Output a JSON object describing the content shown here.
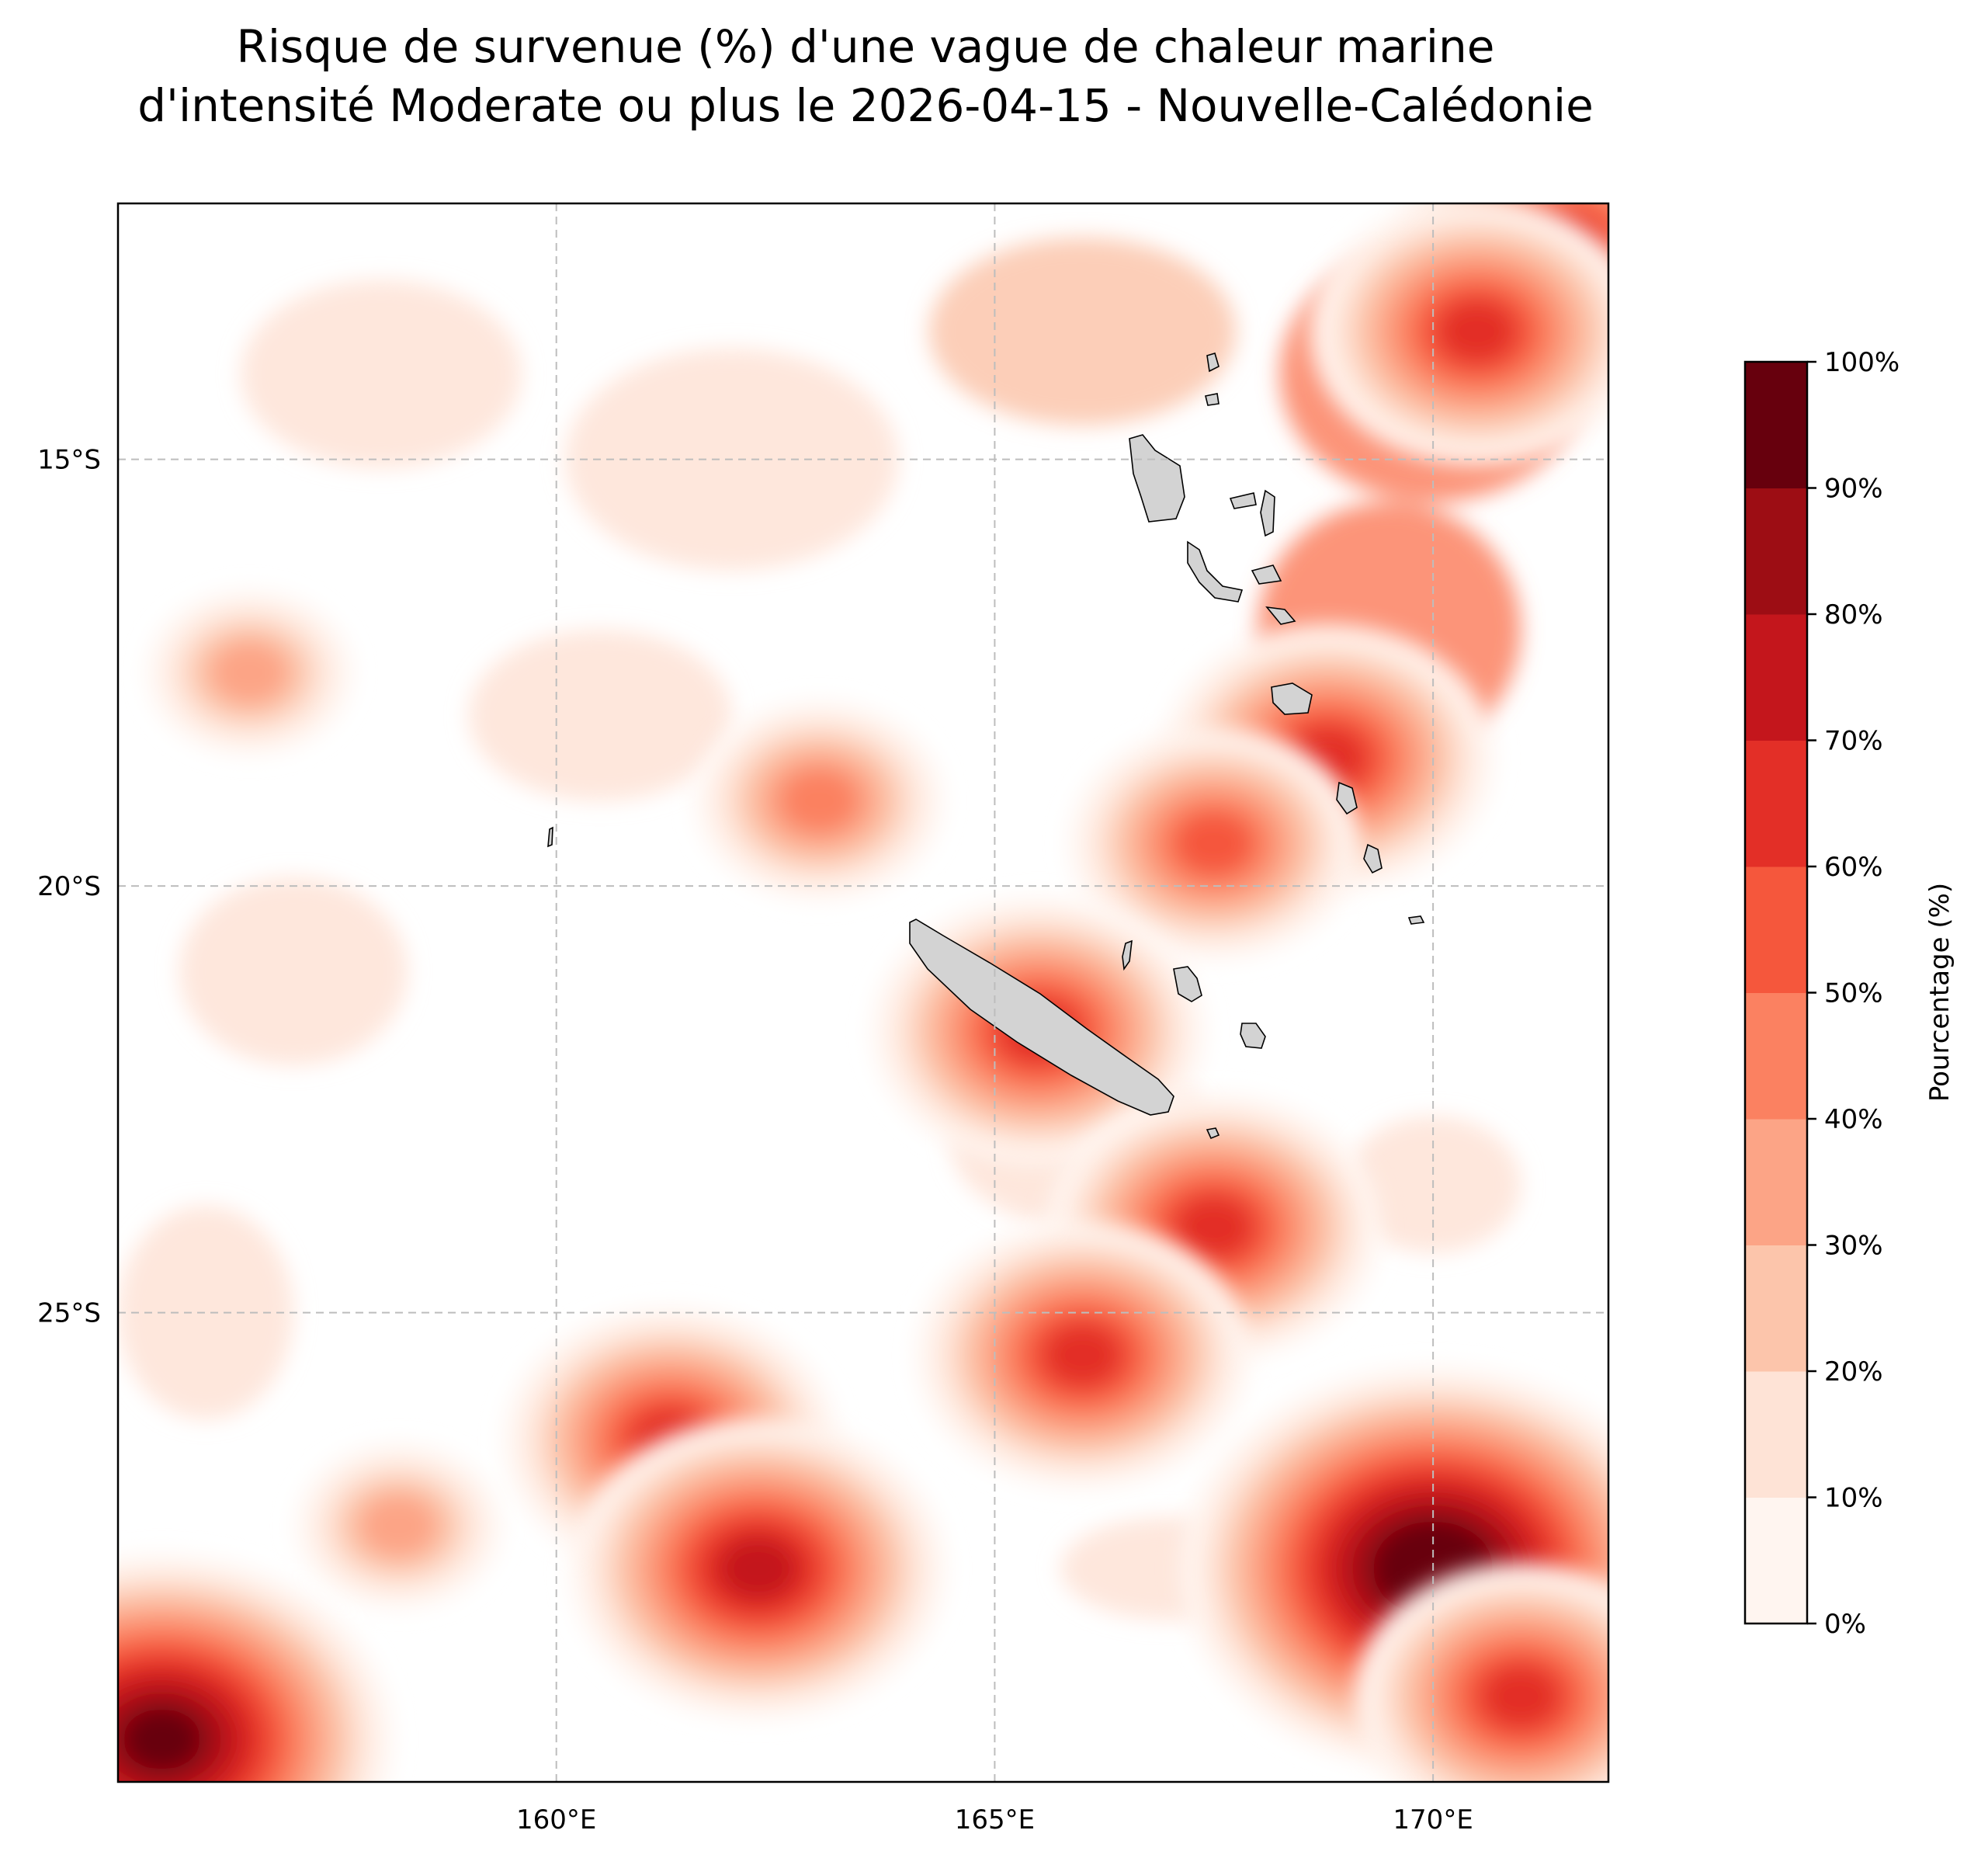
{
  "title": {
    "line1": "Risque de survenue (%) d'une vague de chaleur marine",
    "line2": "d'intensité Moderate ou plus le 2026-04-15 - Nouvelle-Calédonie"
  },
  "map": {
    "extent": {
      "lon_min": 155,
      "lon_max": 172,
      "lat_min": -30.5,
      "lat_max": -12
    },
    "gridlines": true,
    "land_color": "#d3d3d3",
    "x_ticks": [
      {
        "lon": 160,
        "label": "160°E"
      },
      {
        "lon": 165,
        "label": "165°E"
      },
      {
        "lon": 170,
        "label": "170°E"
      }
    ],
    "y_ticks": [
      {
        "lat": -15,
        "label": "15°S"
      },
      {
        "lat": -20,
        "label": "20°S"
      },
      {
        "lat": -25,
        "label": "25°S"
      }
    ]
  },
  "colorbar": {
    "label": "Pourcentage (%)",
    "levels": [
      "0%",
      "10%",
      "20%",
      "30%",
      "40%",
      "50%",
      "60%",
      "70%",
      "80%",
      "90%",
      "100%"
    ],
    "colors": [
      "#fff5f0",
      "#fee3d6",
      "#fcc5ab",
      "#fca486",
      "#fb8161",
      "#f5573c",
      "#e32f27",
      "#c4161c",
      "#9d0d14",
      "#67000d"
    ]
  },
  "chart_data": {
    "type": "heatmap",
    "variable": "Pourcentage (%)",
    "value_range": [
      0,
      100
    ],
    "hotspots": [
      {
        "lon": 171.5,
        "lat": -12.5,
        "value": 65
      },
      {
        "lon": 170.5,
        "lat": -13.5,
        "value": 60
      },
      {
        "lon": 168.8,
        "lat": -18.5,
        "value": 60
      },
      {
        "lon": 167.5,
        "lat": -19.5,
        "value": 50
      },
      {
        "lon": 163,
        "lat": -19,
        "value": 40
      },
      {
        "lon": 156.5,
        "lat": -17.5,
        "value": 35
      },
      {
        "lon": 165.5,
        "lat": -21.7,
        "value": 65
      },
      {
        "lon": 167.5,
        "lat": -24,
        "value": 60
      },
      {
        "lon": 166,
        "lat": -25.5,
        "value": 60
      },
      {
        "lon": 161.3,
        "lat": -26.5,
        "value": 65
      },
      {
        "lon": 162.3,
        "lat": -28,
        "value": 70
      },
      {
        "lon": 170,
        "lat": -28,
        "value": 100
      },
      {
        "lon": 171,
        "lat": -29.5,
        "value": 65
      },
      {
        "lon": 155.5,
        "lat": -30,
        "value": 95
      },
      {
        "lon": 158.2,
        "lat": -27.5,
        "value": 30
      }
    ]
  }
}
